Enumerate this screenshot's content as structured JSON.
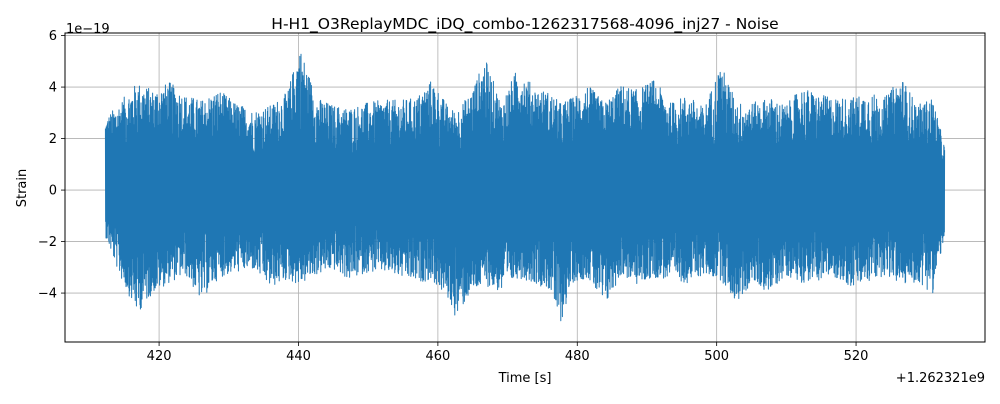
{
  "chart_data": {
    "type": "line",
    "title": "H-H1_O3ReplayMDC_iDQ_combo-1262317568-4096_inj27 - Noise",
    "xlabel": "Time [s]",
    "ylabel": "Strain",
    "x_offset_label": "+1.262321e9",
    "y_exponent_label": "1e−19",
    "xlim": [
      406.5,
      538.5
    ],
    "ylim": [
      -5.9,
      6.1
    ],
    "x_ticks": [
      420,
      440,
      460,
      480,
      500,
      520
    ],
    "x_tick_labels": [
      "420",
      "440",
      "460",
      "480",
      "500",
      "520"
    ],
    "y_ticks": [
      -4,
      -2,
      0,
      2,
      4,
      6
    ],
    "y_tick_labels": [
      "−4",
      "−2",
      "0",
      "2",
      "4",
      "6"
    ],
    "grid": true,
    "series": [
      {
        "color": "#1f77b4",
        "x_start": 412.3,
        "x_end": 532.7,
        "envelope": {
          "x": [
            412.3,
            414.3,
            416.9,
            419.1,
            421.5,
            423.8,
            426.0,
            428.6,
            431.0,
            433.5,
            436.0,
            438.4,
            440.2,
            442.6,
            445.0,
            447.3,
            449.8,
            452.1,
            454.6,
            456.9,
            459.1,
            461.6,
            462.6,
            464.5,
            466.8,
            469.1,
            471.5,
            473.8,
            476.1,
            477.5,
            479.3,
            481.5,
            483.9,
            486.3,
            488.6,
            491.0,
            493.4,
            495.8,
            498.2,
            500.6,
            502.9,
            505.2,
            507.6,
            509.9,
            512.3,
            514.7,
            517.0,
            519.4,
            521.8,
            524.1,
            526.5,
            528.8,
            531.0,
            532.7
          ],
          "upper": [
            2.8,
            3.4,
            4.2,
            3.9,
            4.2,
            3.7,
            3.5,
            3.9,
            3.4,
            3.1,
            3.3,
            3.8,
            5.6,
            3.6,
            3.3,
            3.2,
            3.4,
            3.5,
            3.5,
            3.6,
            4.3,
            3.2,
            3.1,
            3.7,
            5.1,
            3.4,
            4.8,
            4.0,
            3.8,
            3.4,
            3.6,
            4.1,
            3.4,
            4.1,
            3.9,
            4.3,
            3.4,
            3.7,
            3.2,
            4.9,
            3.4,
            3.4,
            3.6,
            3.3,
            4.0,
            3.7,
            3.6,
            3.6,
            3.8,
            3.6,
            4.4,
            3.3,
            3.6,
            1.7
          ],
          "lower": [
            -1.8,
            -3.3,
            -4.8,
            -4.0,
            -3.6,
            -3.3,
            -4.3,
            -3.4,
            -3.2,
            -3.1,
            -3.8,
            -3.5,
            -3.7,
            -3.3,
            -3.1,
            -3.5,
            -3.2,
            -3.2,
            -3.4,
            -3.6,
            -3.5,
            -4.3,
            -5.0,
            -4.1,
            -3.7,
            -4.0,
            -3.4,
            -3.6,
            -3.9,
            -5.3,
            -3.6,
            -3.4,
            -4.6,
            -3.3,
            -3.7,
            -3.4,
            -3.5,
            -3.6,
            -3.3,
            -3.5,
            -4.4,
            -3.6,
            -4.0,
            -3.3,
            -3.6,
            -3.5,
            -3.4,
            -3.8,
            -3.6,
            -3.3,
            -3.7,
            -3.6,
            -4.0,
            -1.8
          ]
        }
      }
    ]
  }
}
